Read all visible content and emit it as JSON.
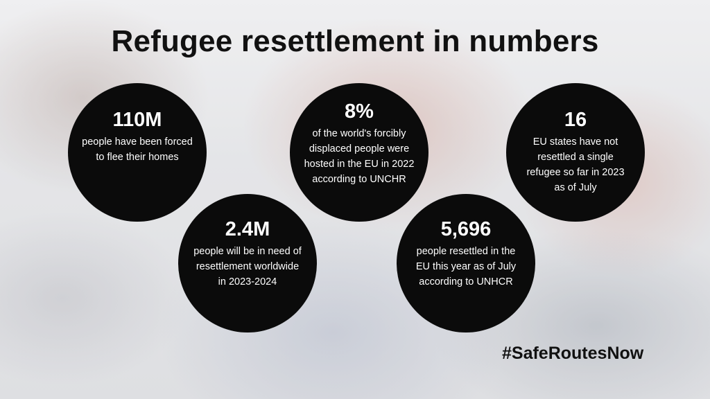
{
  "title": "Refugee resettlement in numbers",
  "stats": [
    {
      "number": "110M",
      "description": "people have been forced to flee their homes"
    },
    {
      "number": "8%",
      "description": "of the world's forcibly displaced people were hosted in the EU in 2022 according to UNCHR"
    },
    {
      "number": "16",
      "description": "EU states have not resettled a single refugee so far in 2023 as of July"
    },
    {
      "number": "2.4M",
      "description": "people will be in need of resettlement worldwide in 2023-2024"
    },
    {
      "number": "5,696",
      "description": "people resettled in the EU this year as of July according to UNHCR"
    }
  ],
  "hashtag": "#SafeRoutesNow",
  "colors": {
    "circle": "#0b0b0b",
    "text_dark": "#111111",
    "text_light": "#ffffff"
  }
}
